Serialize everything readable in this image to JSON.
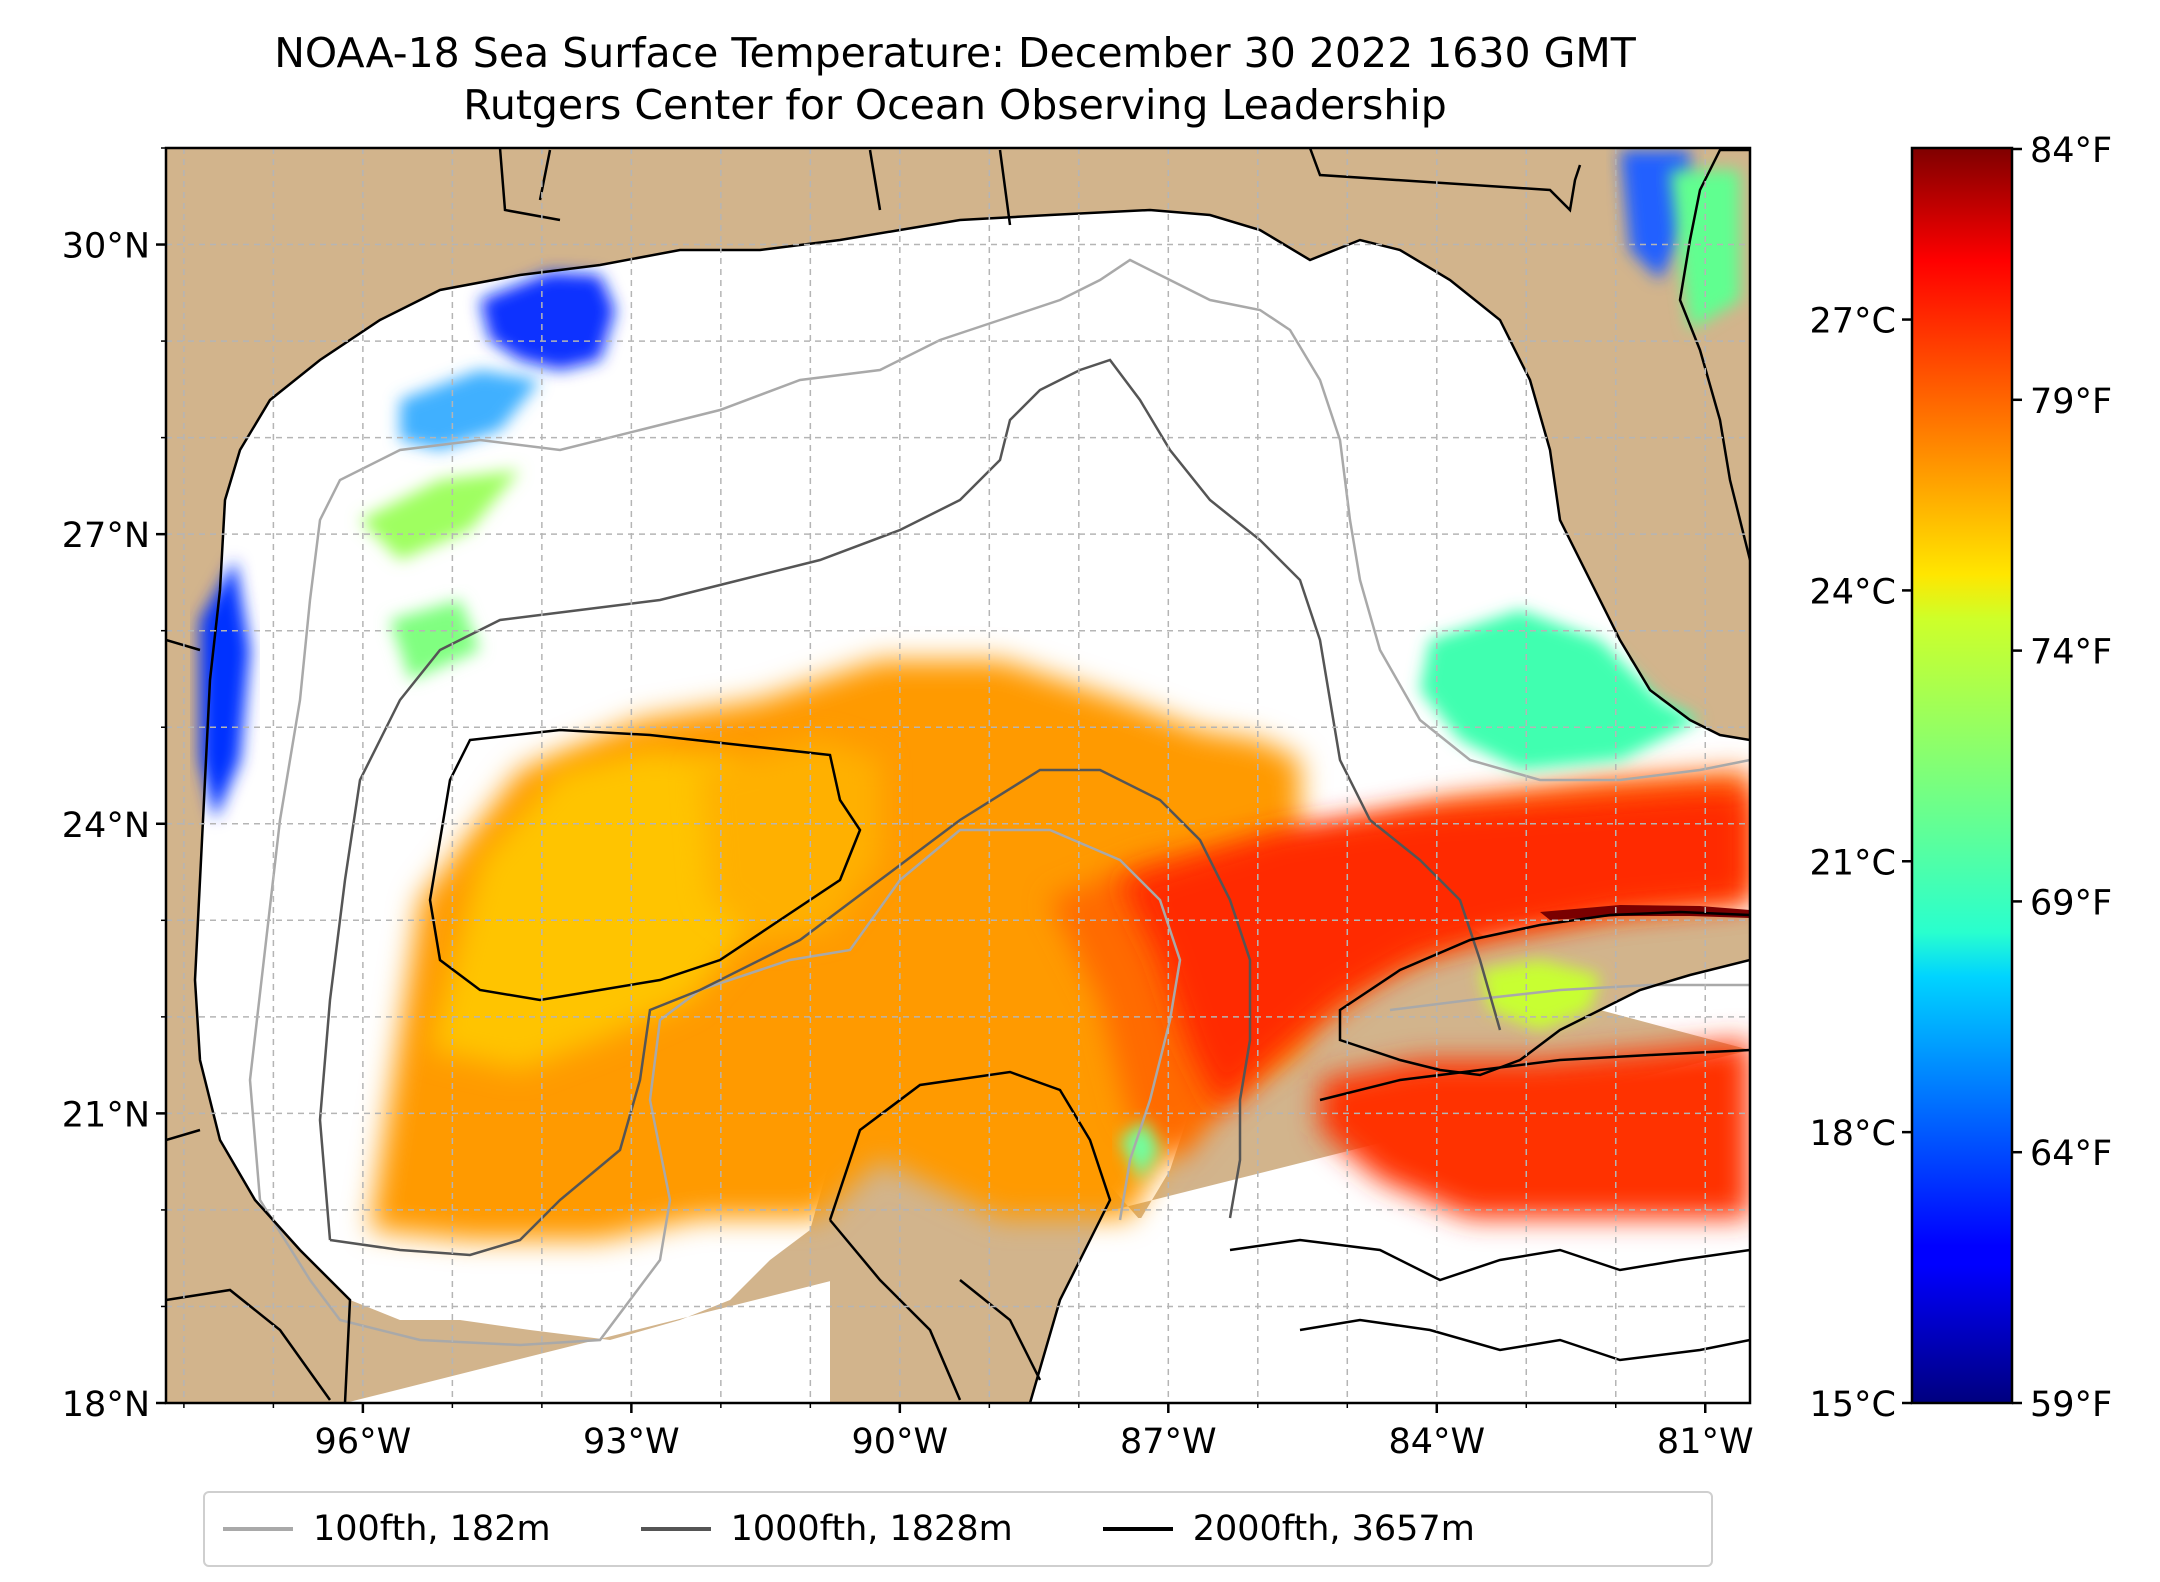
{
  "title": "NOAA-18 Sea Surface Temperature: December 30 2022 1630 GMT",
  "subtitle": "Rutgers Center for Ocean Observing Leadership",
  "map": {
    "extent": {
      "lon": [
        -98.2,
        -80.5
      ],
      "lat": [
        18,
        31
      ]
    },
    "lat_ticks": [
      {
        "value": 30,
        "label": "30°N"
      },
      {
        "value": 27,
        "label": "27°N"
      },
      {
        "value": 24,
        "label": "24°N"
      },
      {
        "value": 21,
        "label": "21°N"
      },
      {
        "value": 18,
        "label": "18°N"
      }
    ],
    "lon_ticks": [
      {
        "value": -96,
        "label": "96°W"
      },
      {
        "value": -93,
        "label": "93°W"
      },
      {
        "value": -90,
        "label": "90°W"
      },
      {
        "value": -87,
        "label": "87°W"
      },
      {
        "value": -84,
        "label": "84°W"
      },
      {
        "value": -81,
        "label": "81°W"
      }
    ],
    "gridlines": true,
    "land_color": "#d2b48c",
    "colormap": "jet",
    "sst_range_c": [
      15,
      28.9
    ]
  },
  "colorbar": {
    "celsius_ticks": [
      {
        "value": 27,
        "label": "27°C"
      },
      {
        "value": 24,
        "label": "24°C"
      },
      {
        "value": 21,
        "label": "21°C"
      },
      {
        "value": 18,
        "label": "18°C"
      },
      {
        "value": 15,
        "label": "15°C"
      }
    ],
    "fahrenheit_ticks": [
      {
        "value": 84,
        "label": "84°F"
      },
      {
        "value": 79,
        "label": "79°F"
      },
      {
        "value": 74,
        "label": "74°F"
      },
      {
        "value": 69,
        "label": "69°F"
      },
      {
        "value": 64,
        "label": "64°F"
      },
      {
        "value": 59,
        "label": "59°F"
      }
    ]
  },
  "legend": [
    {
      "label": "100fth, 182m",
      "color": "#a9a9a9"
    },
    {
      "label": "1000fth, 1828m",
      "color": "#555555"
    },
    {
      "label": "2000fth, 3657m",
      "color": "#000000"
    }
  ]
}
